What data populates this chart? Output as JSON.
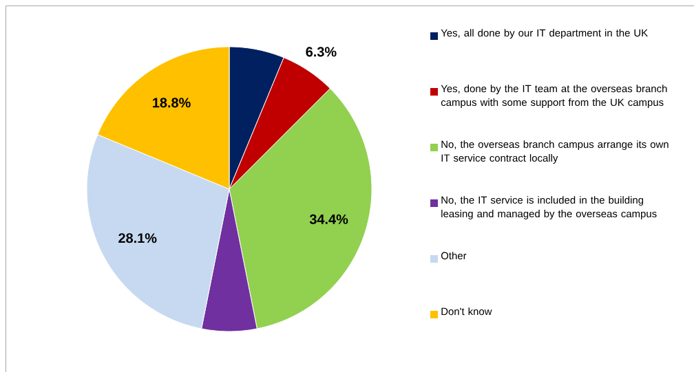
{
  "chart_data": {
    "type": "pie",
    "categories": [
      "Yes, all done by our IT department in the UK",
      "Yes, done by the IT team at the overseas branch campus with some support from the UK campus",
      "No, the overseas branch campus arrange its own IT service contract locally",
      "No, the IT service is included in the building leasing and managed by the overseas campus",
      "Other",
      "Don't know"
    ],
    "values": [
      6.25,
      6.25,
      34.375,
      6.25,
      28.125,
      18.75
    ],
    "colors": [
      "#002060",
      "#c00000",
      "#92d050",
      "#7030a0",
      "#c6d9f1",
      "#ffc000"
    ],
    "value_labels": [
      null,
      "6.3%",
      "34.4%",
      null,
      "28.1%",
      "18.8%"
    ],
    "legend": "right"
  }
}
